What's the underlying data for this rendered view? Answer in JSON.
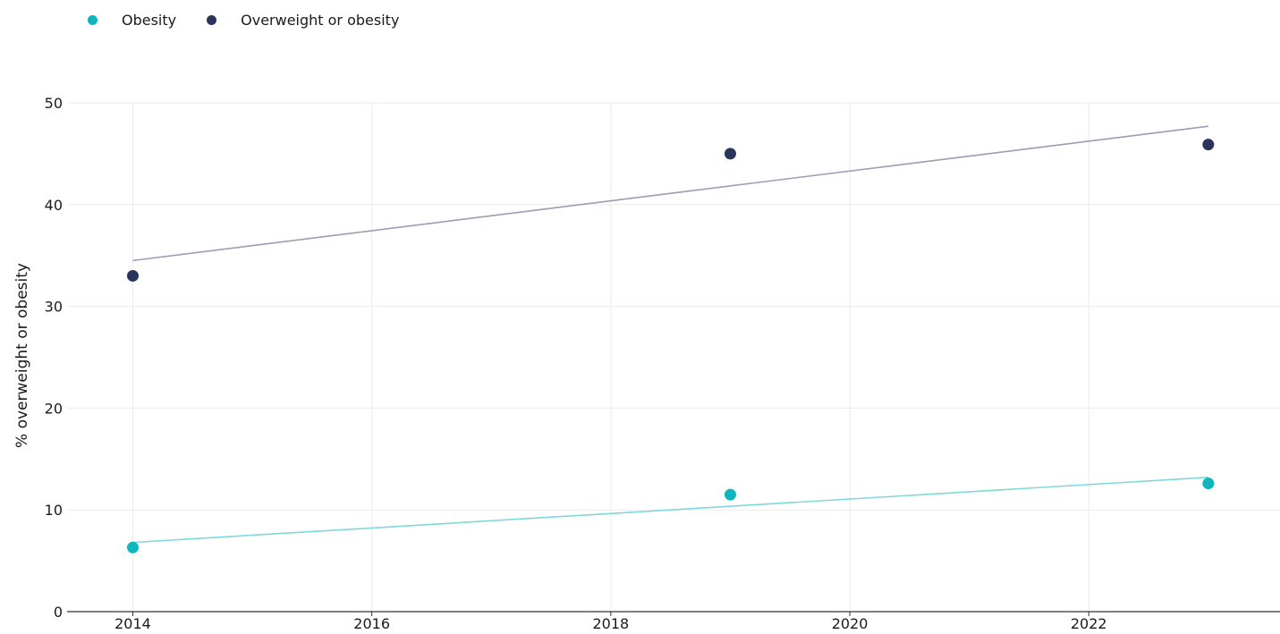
{
  "chart_data": {
    "type": "scatter",
    "ylabel": "% overweight or obesity",
    "xlabel": "",
    "xlim": [
      2013.45,
      2023.6
    ],
    "ylim": [
      0,
      50
    ],
    "x_ticks": [
      2014,
      2016,
      2018,
      2020,
      2022
    ],
    "y_ticks": [
      0,
      10,
      20,
      30,
      40,
      50
    ],
    "grid": true,
    "legend_position": "top-left",
    "series": [
      {
        "name": "Obesity",
        "color": "#10b5bd",
        "trend_color": "#7ed8dc",
        "points": [
          {
            "x": 2014,
            "y": 6.3
          },
          {
            "x": 2019,
            "y": 11.5
          },
          {
            "x": 2023,
            "y": 12.6
          }
        ],
        "trend": [
          {
            "x": 2014,
            "y": 6.8
          },
          {
            "x": 2023,
            "y": 13.2
          }
        ]
      },
      {
        "name": "Overweight or obesity",
        "color": "#2a355e",
        "trend_color": "#9a9db5",
        "points": [
          {
            "x": 2014,
            "y": 33.0
          },
          {
            "x": 2019,
            "y": 45.0
          },
          {
            "x": 2023,
            "y": 45.9
          }
        ],
        "trend": [
          {
            "x": 2014,
            "y": 34.5
          },
          {
            "x": 2023,
            "y": 47.7
          }
        ]
      }
    ]
  }
}
